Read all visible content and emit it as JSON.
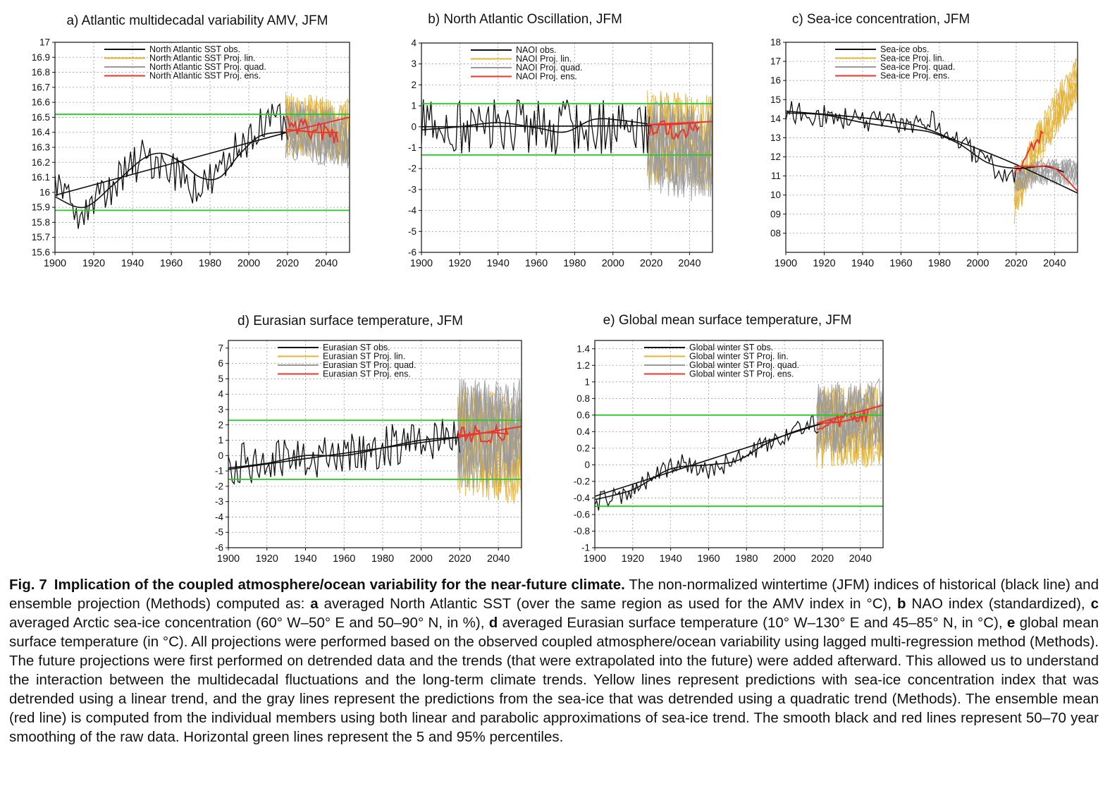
{
  "colors": {
    "obs": "#111111",
    "lin": "#e3b33a",
    "quad": "#9a9a9a",
    "ens": "#e8372d",
    "percentile": "#22cc22",
    "grid": "#9a9a9a"
  },
  "chart_data": [
    {
      "id": "a",
      "type": "line",
      "title": "a) Atlantic multidecadal variability AMV, JFM",
      "xlabel": "",
      "ylabel": "",
      "xlim": [
        1900,
        2052
      ],
      "ylim": [
        15.6,
        17.0
      ],
      "yticks": [
        15.6,
        15.7,
        15.8,
        15.9,
        16.0,
        16.1,
        16.2,
        16.3,
        16.4,
        16.5,
        16.6,
        16.7,
        16.8,
        16.9,
        17.0
      ],
      "ytick_labels": [
        "15.6",
        "15.7",
        "15.8",
        "15.9",
        "16",
        "16.1",
        "16.2",
        "16.3",
        "16.4",
        "16.5",
        "16.6",
        "16.7",
        "16.8",
        "16.9",
        "17"
      ],
      "xticks": [
        1900,
        1920,
        1940,
        1960,
        1980,
        2000,
        2020,
        2040
      ],
      "legend": [
        "North Atlantic SST obs.",
        "North Atlantic SST Proj. lin.",
        "North Atlantic SST Proj. quad.",
        "North Atlantic SST Proj. ens."
      ],
      "percentiles": [
        15.88,
        16.52
      ],
      "obs_trend": [
        [
          1900,
          15.98
        ],
        [
          2020,
          16.4
        ]
      ],
      "obs_smooth": [
        [
          1900,
          15.97
        ],
        [
          1915,
          15.9
        ],
        [
          1930,
          16.05
        ],
        [
          1945,
          16.22
        ],
        [
          1955,
          16.26
        ],
        [
          1965,
          16.2
        ],
        [
          1975,
          16.1
        ],
        [
          1985,
          16.1
        ],
        [
          1995,
          16.25
        ],
        [
          2005,
          16.37
        ],
        [
          2015,
          16.4
        ],
        [
          2020,
          16.4
        ]
      ],
      "obs_base": [
        [
          1900,
          16.0
        ],
        [
          1915,
          15.87
        ],
        [
          1930,
          16.05
        ],
        [
          1945,
          16.22
        ],
        [
          1955,
          16.22
        ],
        [
          1965,
          16.12
        ],
        [
          1975,
          16.02
        ],
        [
          1985,
          16.12
        ],
        [
          1995,
          16.32
        ],
        [
          2005,
          16.45
        ],
        [
          2020,
          16.45
        ]
      ],
      "obs_amp": 0.14,
      "proj_start": 2019,
      "proj_end_lin": 2052,
      "proj_end_quad": 2052,
      "proj_end_ens": 2046,
      "lin_base": [
        [
          2019,
          16.45
        ],
        [
          2052,
          16.4
        ]
      ],
      "lin_amp": 0.22,
      "quad_base": [
        [
          2019,
          16.42
        ],
        [
          2052,
          16.35
        ]
      ],
      "quad_amp": 0.2,
      "ens_base": [
        [
          2019,
          16.45
        ],
        [
          2030,
          16.42
        ],
        [
          2046,
          16.38
        ]
      ],
      "ens_amp": 0.06,
      "ens_trend": [
        [
          2019,
          16.4
        ],
        [
          2052,
          16.5
        ]
      ],
      "ens_smooth": [
        [
          2019,
          16.42
        ],
        [
          2035,
          16.4
        ],
        [
          2046,
          16.4
        ]
      ]
    },
    {
      "id": "b",
      "type": "line",
      "title": "b) North Atlantic Oscillation, JFM",
      "xlabel": "",
      "ylabel": "",
      "xlim": [
        1900,
        2052
      ],
      "ylim": [
        -6,
        4
      ],
      "yticks": [
        -6,
        -5,
        -4,
        -3,
        -2,
        -1,
        0,
        1,
        2,
        3,
        4
      ],
      "ytick_labels": [
        "-6",
        "-5",
        "-4",
        "-3",
        "-2",
        "-1",
        "0",
        "1",
        "2",
        "3",
        "4"
      ],
      "xticks": [
        1900,
        1920,
        1940,
        1960,
        1980,
        2000,
        2020,
        2040
      ],
      "legend": [
        "NAOI obs.",
        "NAOI Proj. lin.",
        "NAOI Proj. quad.",
        "NAOI Proj. ens."
      ],
      "percentiles": [
        -1.35,
        1.1
      ],
      "obs_trend": [
        [
          1900,
          0.0
        ],
        [
          2020,
          0.05
        ]
      ],
      "obs_smooth": [
        [
          1900,
          -0.15
        ],
        [
          1920,
          0.0
        ],
        [
          1940,
          0.2
        ],
        [
          1960,
          -0.05
        ],
        [
          1975,
          -0.25
        ],
        [
          1990,
          0.35
        ],
        [
          2005,
          0.3
        ],
        [
          2020,
          0.1
        ]
      ],
      "obs_base": [
        [
          1900,
          0.0
        ],
        [
          2020,
          0.0
        ]
      ],
      "obs_amp": 1.4,
      "proj_start": 2018,
      "proj_end_lin": 2052,
      "proj_end_quad": 2052,
      "proj_end_ens": 2045,
      "lin_base": [
        [
          2018,
          -0.5
        ],
        [
          2052,
          -0.8
        ]
      ],
      "lin_amp": 2.3,
      "quad_base": [
        [
          2018,
          -0.8
        ],
        [
          2052,
          -1.5
        ]
      ],
      "quad_amp": 2.3,
      "ens_base": [
        [
          2018,
          0.0
        ],
        [
          2045,
          -0.3
        ]
      ],
      "ens_amp": 0.45,
      "ens_trend": [
        [
          2018,
          0.1
        ],
        [
          2052,
          0.25
        ]
      ],
      "ens_smooth": [
        [
          2018,
          0.1
        ],
        [
          2030,
          0.1
        ],
        [
          2045,
          0.2
        ]
      ]
    },
    {
      "id": "c",
      "type": "line",
      "title": "c) Sea-ice concentration, JFM",
      "xlabel": "",
      "ylabel": "",
      "xlim": [
        1900,
        2052
      ],
      "ylim": [
        7,
        18
      ],
      "yticks": [
        8,
        9,
        10,
        11,
        12,
        13,
        14,
        15,
        16,
        17,
        18
      ],
      "ytick_labels": [
        "08",
        "09",
        "10",
        "11",
        "12",
        "13",
        "14",
        "15",
        "16",
        "17",
        "18"
      ],
      "xticks": [
        1900,
        1920,
        1940,
        1960,
        1980,
        2000,
        2020,
        2040
      ],
      "legend": [
        "Sea-ice obs.",
        "Sea-ice Proj. lin.",
        "Sea-ice Proj. quad.",
        "Sea-ice Proj. ens."
      ],
      "percentiles": [],
      "obs_trend": [
        [
          1900,
          14.4
        ],
        [
          1960,
          13.8
        ],
        [
          1990,
          12.8
        ],
        [
          2020,
          11.6
        ],
        [
          2052,
          10.1
        ]
      ],
      "obs_smooth": [
        [
          1900,
          14.3
        ],
        [
          1920,
          14.2
        ],
        [
          1940,
          13.8
        ],
        [
          1960,
          13.5
        ],
        [
          1975,
          13.3
        ],
        [
          1990,
          12.7
        ],
        [
          2005,
          11.7
        ],
        [
          2020,
          11.4
        ],
        [
          2035,
          11.5
        ],
        [
          2045,
          11.2
        ]
      ],
      "obs_base": [
        [
          1900,
          14.4
        ],
        [
          1930,
          14.0
        ],
        [
          1960,
          13.7
        ],
        [
          1975,
          13.9
        ],
        [
          1990,
          12.8
        ],
        [
          2005,
          11.6
        ],
        [
          2018,
          11.0
        ]
      ],
      "obs_amp": 0.6,
      "proj_start": 2019,
      "proj_end_lin": 2052,
      "proj_end_quad": 2052,
      "proj_end_ens": 2034,
      "lin_base": [
        [
          2019,
          9.6
        ],
        [
          2030,
          12.3
        ],
        [
          2040,
          14.2
        ],
        [
          2052,
          16.0
        ]
      ],
      "lin_amp": 1.3,
      "quad_base": [
        [
          2019,
          10.8
        ],
        [
          2035,
          11.2
        ],
        [
          2052,
          11.2
        ]
      ],
      "quad_amp": 0.7,
      "ens_base": [
        [
          2019,
          10.9
        ],
        [
          2025,
          12.0
        ],
        [
          2030,
          12.8
        ],
        [
          2034,
          13.2
        ]
      ],
      "ens_amp": 0.3,
      "ens_trend": [],
      "ens_smooth": [
        [
          2019,
          11.5
        ],
        [
          2030,
          11.5
        ],
        [
          2040,
          11.4
        ],
        [
          2052,
          10.2
        ]
      ]
    },
    {
      "id": "d",
      "type": "line",
      "title": "d) Eurasian surface temperature, JFM",
      "xlabel": "",
      "ylabel": "",
      "xlim": [
        1900,
        2052
      ],
      "ylim": [
        -6,
        7.5
      ],
      "yticks": [
        -6,
        -5,
        -4,
        -3,
        -2,
        -1,
        0,
        1,
        2,
        3,
        4,
        5,
        6,
        7
      ],
      "ytick_labels": [
        "-6",
        "-5",
        "-4",
        "-3",
        "-2",
        "-1",
        "0",
        "1",
        "2",
        "3",
        "4",
        "5",
        "6",
        "7"
      ],
      "xticks": [
        1900,
        1920,
        1940,
        1960,
        1980,
        2000,
        2020,
        2040
      ],
      "legend": [
        "Eurasian ST obs.",
        "Eurasian ST Proj. lin.",
        "Eurasian ST Proj. quad.",
        "Eurasian ST Proj. ens."
      ],
      "percentiles": [
        -1.55,
        2.3
      ],
      "obs_trend": [
        [
          1900,
          -0.9
        ],
        [
          2020,
          1.2
        ]
      ],
      "obs_smooth": [
        [
          1900,
          -0.8
        ],
        [
          1920,
          -0.5
        ],
        [
          1940,
          0.0
        ],
        [
          1960,
          0.0
        ],
        [
          1980,
          0.5
        ],
        [
          2000,
          1.0
        ],
        [
          2020,
          1.2
        ]
      ],
      "obs_base": [
        [
          1900,
          -0.6
        ],
        [
          1930,
          -0.3
        ],
        [
          1960,
          0.0
        ],
        [
          1990,
          0.8
        ],
        [
          2020,
          1.3
        ]
      ],
      "obs_amp": 1.4,
      "proj_start": 2019,
      "proj_end_lin": 2052,
      "proj_end_quad": 2052,
      "proj_end_ens": 2045,
      "lin_base": [
        [
          2019,
          1.0
        ],
        [
          2052,
          0.3
        ]
      ],
      "lin_amp": 3.6,
      "quad_base": [
        [
          2019,
          1.4
        ],
        [
          2052,
          1.5
        ]
      ],
      "quad_amp": 3.6,
      "ens_base": [
        [
          2019,
          1.3
        ],
        [
          2045,
          1.5
        ]
      ],
      "ens_amp": 0.6,
      "ens_trend": [
        [
          2019,
          1.2
        ],
        [
          2052,
          1.9
        ]
      ],
      "ens_smooth": [
        [
          2019,
          1.3
        ],
        [
          2035,
          1.5
        ],
        [
          2045,
          1.4
        ]
      ]
    },
    {
      "id": "e",
      "type": "line",
      "title": "e) Global mean surface temperature, JFM",
      "xlabel": "",
      "ylabel": "",
      "xlim": [
        1900,
        2052
      ],
      "ylim": [
        -1.0,
        1.5
      ],
      "yticks": [
        -1.0,
        -0.8,
        -0.6,
        -0.4,
        -0.2,
        0,
        0.2,
        0.4,
        0.6,
        0.8,
        1.0,
        1.2,
        1.4
      ],
      "ytick_labels": [
        "-1",
        "-0.8",
        "-0.6",
        "-0.4",
        "-0.2",
        "0",
        "0.2",
        "0.4",
        "0.6",
        "0.8",
        "1",
        "1.2",
        "1.4"
      ],
      "xticks": [
        1900,
        1920,
        1940,
        1960,
        1980,
        2000,
        2020,
        2040
      ],
      "legend": [
        "Global winter ST obs.",
        "Global winter ST Proj. lin.",
        "Global winter ST Proj. quad.",
        "Global winter ST Proj. ens."
      ],
      "percentiles": [
        -0.5,
        0.6
      ],
      "obs_trend": [
        [
          1900,
          -0.38
        ],
        [
          2020,
          0.5
        ]
      ],
      "obs_smooth": [
        [
          1900,
          -0.42
        ],
        [
          1920,
          -0.3
        ],
        [
          1940,
          -0.05
        ],
        [
          1960,
          0.0
        ],
        [
          1975,
          0.05
        ],
        [
          1990,
          0.25
        ],
        [
          2005,
          0.4
        ],
        [
          2020,
          0.5
        ]
      ],
      "obs_base": [
        [
          1900,
          -0.45
        ],
        [
          1915,
          -0.38
        ],
        [
          1935,
          -0.1
        ],
        [
          1945,
          0.05
        ],
        [
          1960,
          -0.05
        ],
        [
          1975,
          0.05
        ],
        [
          1990,
          0.25
        ],
        [
          2005,
          0.42
        ],
        [
          2020,
          0.52
        ]
      ],
      "obs_amp": 0.12,
      "proj_start": 2017,
      "proj_end_lin": 2052,
      "proj_end_quad": 2052,
      "proj_end_ens": 2044,
      "lin_base": [
        [
          2017,
          0.45
        ],
        [
          2052,
          0.45
        ]
      ],
      "lin_amp": 0.5,
      "quad_base": [
        [
          2017,
          0.55
        ],
        [
          2052,
          0.6
        ]
      ],
      "quad_amp": 0.45,
      "ens_base": [
        [
          2017,
          0.48
        ],
        [
          2044,
          0.6
        ]
      ],
      "ens_amp": 0.08,
      "ens_trend": [
        [
          2017,
          0.5
        ],
        [
          2052,
          0.72
        ]
      ],
      "ens_smooth": [
        [
          2017,
          0.5
        ],
        [
          2030,
          0.52
        ],
        [
          2044,
          0.6
        ]
      ]
    }
  ],
  "caption": {
    "label": "Fig. 7",
    "title": "Implication of the coupled atmosphere/ocean variability for the near-future climate.",
    "p1": " The non-normalized wintertime (JFM) indices of historical (black line) and ensemble projection (Methods) computed as: ",
    "a": "a",
    "p2": " averaged North Atlantic SST (over the same region as used for the AMV index in °C), ",
    "b": "b",
    "p3": " NAO index (standardized), ",
    "c": "c",
    "p4": " averaged Arctic sea-ice concentration (60° W–50° E and 50–90° N, in %), ",
    "d": "d",
    "p5": " averaged Eurasian surface temperature (10° W–130° E and 45–85° N, in °C), ",
    "e": "e",
    "p6": " global mean surface temperature (in °C). All projections were performed based on the observed coupled atmosphere/ocean variability using lagged multi-regression method (Methods). The future projections were first performed on detrended data and the trends (that were extrapolated into the future) were added afterward. This allowed us to understand the interaction between the multidecadal fluctuations and the long-term climate trends. Yellow lines represent predictions with sea-ice concentration index that was detrended using a linear trend, and the gray lines represent the predictions from the sea-ice that was detrended using a quadratic trend (Methods). The ensemble mean (red line) is computed from the individual members using both linear and parabolic approximations of sea-ice trend. The smooth black and red lines represent 50–70 year smoothing of the raw data. Horizontal green lines represent the 5 and 95% percentiles."
  }
}
